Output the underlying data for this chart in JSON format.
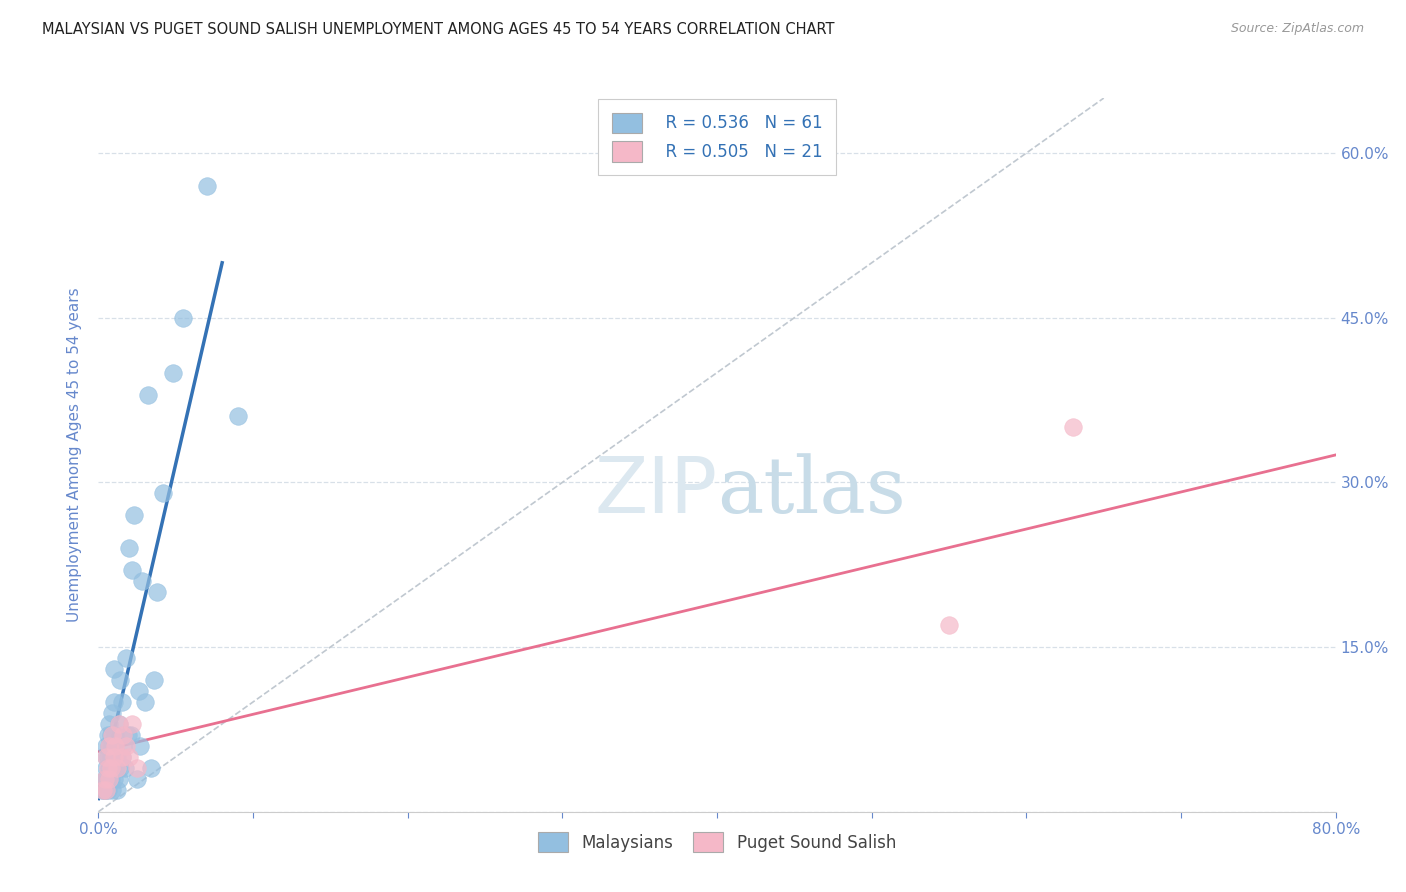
{
  "title": "MALAYSIAN VS PUGET SOUND SALISH UNEMPLOYMENT AMONG AGES 45 TO 54 YEARS CORRELATION CHART",
  "source": "Source: ZipAtlas.com",
  "ylabel": "Unemployment Among Ages 45 to 54 years",
  "xlim": [
    0.0,
    0.8
  ],
  "ylim": [
    0.0,
    0.65
  ],
  "xticks": [
    0.0,
    0.1,
    0.2,
    0.3,
    0.4,
    0.5,
    0.6,
    0.7,
    0.8
  ],
  "yticks": [
    0.0,
    0.15,
    0.3,
    0.45,
    0.6
  ],
  "ytick_labels": [
    "",
    "15.0%",
    "30.0%",
    "45.0%",
    "60.0%"
  ],
  "xtick_labels_show": {
    "0.0": "0.0%",
    "0.8": "80.0%"
  },
  "legend_r_blue": "R = 0.536",
  "legend_n_blue": "N = 61",
  "legend_r_pink": "R = 0.505",
  "legend_n_pink": "N = 21",
  "blue_dot_color": "#93bfe0",
  "pink_dot_color": "#f5b8c8",
  "blue_line_color": "#3472b5",
  "pink_line_color": "#e87090",
  "ref_line_color": "#c0c8d0",
  "grid_color": "#d8e0e8",
  "watermark_color": "#dce8f0",
  "background_color": "#ffffff",
  "axis_color": "#6688cc",
  "tick_color": "#6688cc",
  "title_color": "#222222",
  "source_color": "#999999",
  "legend_text_color": "#3472b5",
  "bottom_legend_color": "#444444",
  "malaysians_x": [
    0.002,
    0.003,
    0.004,
    0.004,
    0.004,
    0.005,
    0.005,
    0.005,
    0.005,
    0.005,
    0.006,
    0.006,
    0.006,
    0.006,
    0.007,
    0.007,
    0.007,
    0.007,
    0.008,
    0.008,
    0.008,
    0.009,
    0.009,
    0.009,
    0.009,
    0.01,
    0.01,
    0.01,
    0.01,
    0.011,
    0.011,
    0.012,
    0.012,
    0.013,
    0.013,
    0.014,
    0.014,
    0.015,
    0.015,
    0.016,
    0.017,
    0.018,
    0.019,
    0.02,
    0.021,
    0.022,
    0.023,
    0.025,
    0.026,
    0.027,
    0.028,
    0.03,
    0.032,
    0.034,
    0.036,
    0.038,
    0.042,
    0.048,
    0.055,
    0.07,
    0.09
  ],
  "malaysians_y": [
    0.02,
    0.02,
    0.02,
    0.03,
    0.03,
    0.02,
    0.03,
    0.04,
    0.05,
    0.06,
    0.02,
    0.03,
    0.05,
    0.07,
    0.03,
    0.04,
    0.06,
    0.08,
    0.03,
    0.05,
    0.07,
    0.02,
    0.04,
    0.06,
    0.09,
    0.03,
    0.06,
    0.1,
    0.13,
    0.04,
    0.07,
    0.02,
    0.05,
    0.03,
    0.08,
    0.04,
    0.12,
    0.05,
    0.1,
    0.06,
    0.04,
    0.14,
    0.07,
    0.24,
    0.07,
    0.22,
    0.27,
    0.03,
    0.11,
    0.06,
    0.21,
    0.1,
    0.38,
    0.04,
    0.12,
    0.2,
    0.29,
    0.4,
    0.45,
    0.57,
    0.36
  ],
  "salish_x": [
    0.003,
    0.004,
    0.005,
    0.005,
    0.006,
    0.007,
    0.007,
    0.008,
    0.009,
    0.01,
    0.011,
    0.012,
    0.013,
    0.015,
    0.016,
    0.018,
    0.02,
    0.022,
    0.025,
    0.55,
    0.63
  ],
  "salish_y": [
    0.02,
    0.03,
    0.02,
    0.05,
    0.04,
    0.03,
    0.06,
    0.04,
    0.07,
    0.05,
    0.06,
    0.04,
    0.08,
    0.05,
    0.07,
    0.06,
    0.05,
    0.08,
    0.04,
    0.17,
    0.35
  ],
  "blue_line_x": [
    0.0,
    0.08
  ],
  "blue_line_y": [
    0.012,
    0.5
  ],
  "pink_line_x": [
    0.0,
    0.8
  ],
  "pink_line_y": [
    0.055,
    0.325
  ],
  "ref_line_x": [
    0.0,
    0.65
  ],
  "ref_line_y": [
    0.0,
    0.65
  ]
}
